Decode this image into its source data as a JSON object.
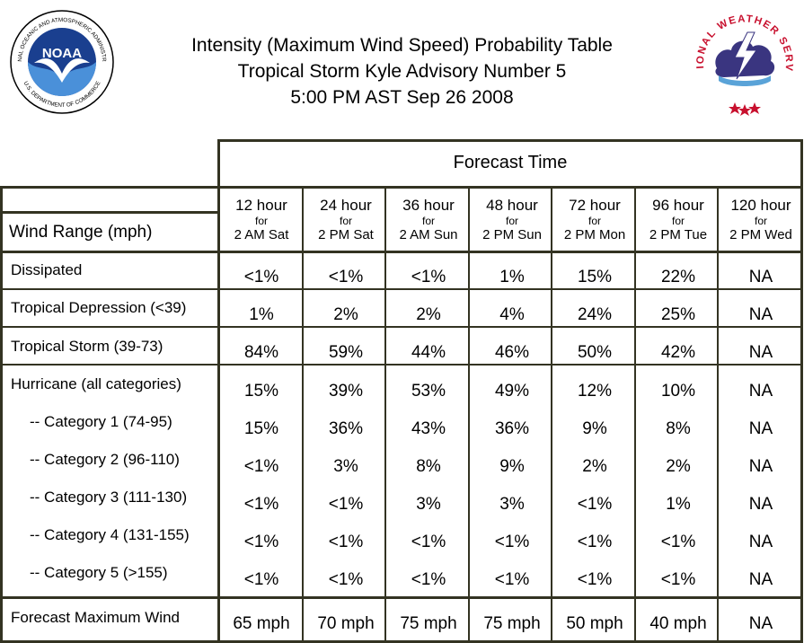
{
  "header": {
    "title_line1": "Intensity (Maximum Wind Speed) Probability Table",
    "title_line2": "Tropical Storm Kyle Advisory Number 5",
    "title_line3": "5:00 PM AST Sep 26 2008",
    "noaa_text": "NOAA",
    "noaa_ring_text": "NATIONAL OCEANIC AND ATMOSPHERIC ADMINISTRATION",
    "noaa_ring_text_bottom": "U.S. DEPARTMENT OF COMMERCE",
    "nws_ring_text": "NATIONAL WEATHER SERVICE"
  },
  "table": {
    "forecast_time_label": "Forecast Time",
    "wind_range_label": "Wind Range (mph)",
    "columns": [
      {
        "hour": "12 hour",
        "for": "for",
        "when": "2 AM Sat"
      },
      {
        "hour": "24 hour",
        "for": "for",
        "when": "2 PM Sat"
      },
      {
        "hour": "36 hour",
        "for": "for",
        "when": "2 AM Sun"
      },
      {
        "hour": "48 hour",
        "for": "for",
        "when": "2 PM Sun"
      },
      {
        "hour": "72 hour",
        "for": "for",
        "when": "2 PM Mon"
      },
      {
        "hour": "96 hour",
        "for": "for",
        "when": "2 PM Tue"
      },
      {
        "hour": "120 hour",
        "for": "for",
        "when": "2 PM Wed"
      }
    ],
    "rows": [
      {
        "label": "Dissipated",
        "values": [
          "<1%",
          "<1%",
          "<1%",
          "1%",
          "15%",
          "22%",
          "NA"
        ]
      },
      {
        "label": "Tropical Depression (<39)",
        "values": [
          "1%",
          "2%",
          "2%",
          "4%",
          "24%",
          "25%",
          "NA"
        ]
      },
      {
        "label": "Tropical Storm (39-73)",
        "values": [
          "84%",
          "59%",
          "44%",
          "46%",
          "50%",
          "42%",
          "NA"
        ]
      },
      {
        "label": "Hurricane (all categories)",
        "values": [
          "15%",
          "39%",
          "53%",
          "49%",
          "12%",
          "10%",
          "NA"
        ]
      },
      {
        "label": "-- Category 1 (74-95)",
        "values": [
          "15%",
          "36%",
          "43%",
          "36%",
          "9%",
          "8%",
          "NA"
        ]
      },
      {
        "label": "-- Category 2 (96-110)",
        "values": [
          "<1%",
          "3%",
          "8%",
          "9%",
          "2%",
          "2%",
          "NA"
        ]
      },
      {
        "label": "-- Category 3 (111-130)",
        "values": [
          "<1%",
          "<1%",
          "3%",
          "3%",
          "<1%",
          "1%",
          "NA"
        ]
      },
      {
        "label": "-- Category 4 (131-155)",
        "values": [
          "<1%",
          "<1%",
          "<1%",
          "<1%",
          "<1%",
          "<1%",
          "NA"
        ]
      },
      {
        "label": "-- Category 5 (>155)",
        "values": [
          "<1%",
          "<1%",
          "<1%",
          "<1%",
          "<1%",
          "<1%",
          "NA"
        ]
      },
      {
        "label": "Forecast Maximum Wind",
        "values": [
          "65 mph",
          "70 mph",
          "75 mph",
          "75 mph",
          "50 mph",
          "40 mph",
          "NA"
        ]
      }
    ]
  },
  "colors": {
    "grid": "#333322",
    "noaa_blue": "#1a3f8f",
    "noaa_navy": "#0b2a6b",
    "nws_red": "#c8102e",
    "nws_cloud": "#3a3580"
  }
}
